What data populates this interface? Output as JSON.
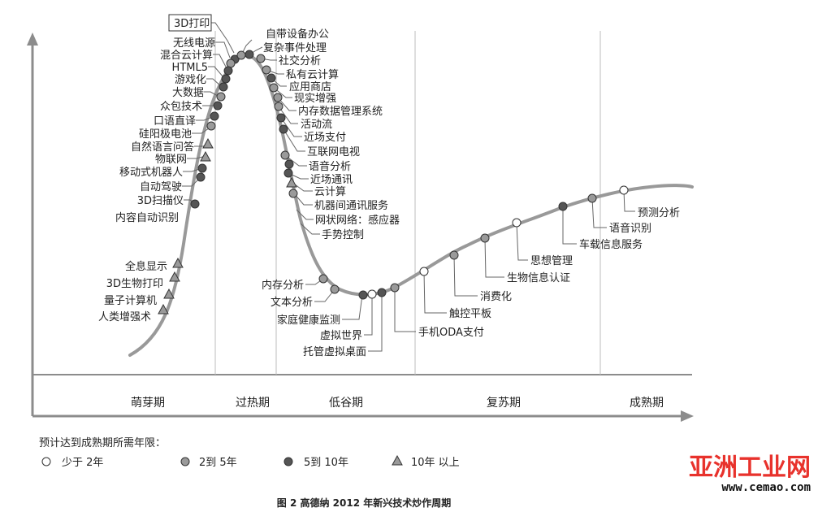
{
  "phases": [
    "萌芽期",
    "过热期",
    "低谷期",
    "复苏期",
    "成熟期"
  ],
  "technologies": [
    {
      "name": "3D打印",
      "status": "five_to_ten",
      "boxed": true
    },
    {
      "name": "无线电源",
      "status": "two_to_five"
    },
    {
      "name": "混合云计算",
      "status": "five_to_ten"
    },
    {
      "name": "HTML5",
      "status": "five_to_ten"
    },
    {
      "name": "游戏化",
      "status": "five_to_ten"
    },
    {
      "name": "大数据",
      "status": "two_to_five"
    },
    {
      "name": "众包技术",
      "status": "five_to_ten"
    },
    {
      "name": "口语直译",
      "status": "five_to_ten"
    },
    {
      "name": "硅阳极电池",
      "status": "two_to_five"
    },
    {
      "name": "自然语言问答",
      "status": "over_ten"
    },
    {
      "name": "物联网",
      "status": "over_ten"
    },
    {
      "name": "移动式机器人",
      "status": "five_to_ten"
    },
    {
      "name": "自动驾驶",
      "status": "five_to_ten"
    },
    {
      "name": "3D扫描仪",
      "status": "five_to_ten"
    },
    {
      "name": "内容自动识别",
      "status": "five_to_ten"
    },
    {
      "name": "全息显示",
      "status": "over_ten"
    },
    {
      "name": "3D生物打印",
      "status": "over_ten"
    },
    {
      "name": "量子计算机",
      "status": "over_ten"
    },
    {
      "name": "人类增强术",
      "status": "over_ten"
    },
    {
      "name": "自带设备办公",
      "status": "two_to_five"
    },
    {
      "name": "复杂事件处理",
      "status": "five_to_ten"
    },
    {
      "name": "社交分析",
      "status": "two_to_five"
    },
    {
      "name": "私有云计算",
      "status": "two_to_five"
    },
    {
      "name": "应用商店",
      "status": "five_to_ten"
    },
    {
      "name": "现实增强",
      "status": "two_to_five"
    },
    {
      "name": "内存数据管理系统",
      "status": "two_to_five"
    },
    {
      "name": "活动流",
      "status": "two_to_five"
    },
    {
      "name": "近场支付",
      "status": "five_to_ten"
    },
    {
      "name": "互联网电视",
      "status": "five_to_ten"
    },
    {
      "name": "语音分析",
      "status": "two_to_five"
    },
    {
      "name": "近场通讯",
      "status": "five_to_ten"
    },
    {
      "name": "云计算",
      "status": "five_to_ten"
    },
    {
      "name": "机器间通讯服务",
      "status": "over_ten"
    },
    {
      "name": "网状网络：感应器",
      "status": "two_to_five"
    },
    {
      "name": "手势控制",
      "status": "two_to_five"
    },
    {
      "name": "内存分析",
      "status": "two_to_five"
    },
    {
      "name": "文本分析",
      "status": "two_to_five"
    },
    {
      "name": "家庭健康监测",
      "status": "five_to_ten"
    },
    {
      "name": "虚拟世界",
      "status": "under_two"
    },
    {
      "name": "托管虚拟桌面",
      "status": "five_to_ten"
    },
    {
      "name": "手机ODA支付",
      "status": "two_to_five"
    },
    {
      "name": "触控平板",
      "status": "under_two"
    },
    {
      "name": "消费化",
      "status": "two_to_five"
    },
    {
      "name": "生物信息认证",
      "status": "two_to_five"
    },
    {
      "name": "思想管理",
      "status": "under_two"
    },
    {
      "name": "车载信息服务",
      "status": "five_to_ten"
    },
    {
      "name": "语音识别",
      "status": "two_to_five"
    },
    {
      "name": "预测分析",
      "status": "under_two"
    }
  ],
  "legend": {
    "title": "预计达到成熟期所需年限：",
    "items": [
      {
        "key": "under_two",
        "label": "少于 2年"
      },
      {
        "key": "two_to_five",
        "label": "2到 5年"
      },
      {
        "key": "five_to_ten",
        "label": "5到 10年"
      },
      {
        "key": "over_ten",
        "label": "10年 以上"
      }
    ]
  },
  "caption": "图 2   高德纳 2012 年新兴技术炒作周期",
  "watermark": {
    "brand": "亚洲工业网",
    "url": "www.cemao.com"
  },
  "colors": {
    "curve": "#999999",
    "axis": "#8c8c8c",
    "dark": "#555555",
    "mid": "#9a9a9a",
    "light": "#ffffff",
    "watermark": "#e8322c"
  }
}
